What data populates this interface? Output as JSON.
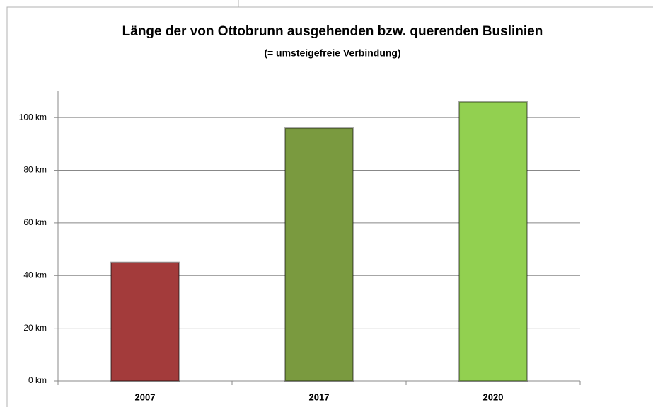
{
  "chart_data": {
    "type": "bar",
    "title": "Länge der von Ottobrunn ausgehenden bzw. querenden Buslinien",
    "subtitle": "(= umsteigefreie Verbindung)",
    "categories": [
      "2007",
      "2017",
      "2020"
    ],
    "values": [
      45,
      96,
      106
    ],
    "colors": [
      "#a33b3b",
      "#7a9a3f",
      "#92d050"
    ],
    "ylim": [
      0,
      110
    ],
    "yticks": [
      {
        "value": 0,
        "label": "0 km"
      },
      {
        "value": 20,
        "label": "20 km"
      },
      {
        "value": 40,
        "label": "40 km"
      },
      {
        "value": 60,
        "label": "60 km"
      },
      {
        "value": 80,
        "label": "80 km"
      },
      {
        "value": 100,
        "label": "100 km"
      }
    ],
    "grid": true
  }
}
